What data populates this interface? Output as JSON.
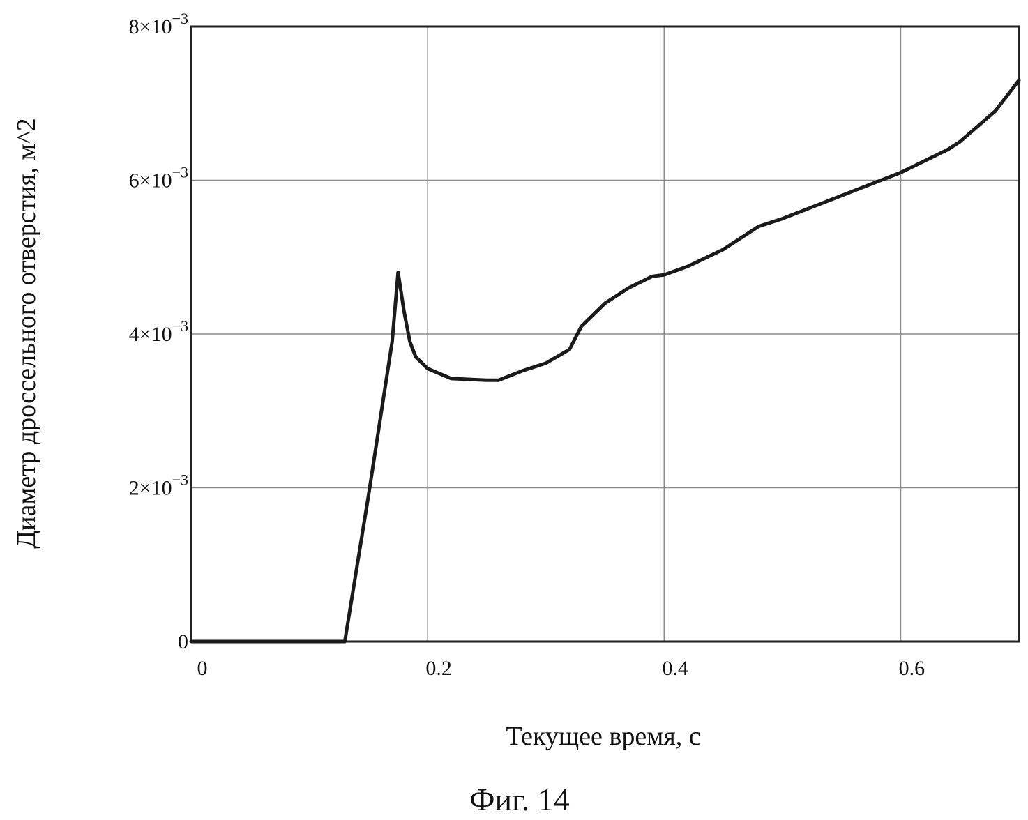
{
  "caption": "Фиг. 14",
  "chart_data": {
    "type": "line",
    "title": "",
    "xlabel": "Текущее время, с",
    "ylabel": "Диаметр дроссельного отверстия, м^2",
    "xlim": [
      0,
      0.7
    ],
    "ylim": [
      0,
      0.008
    ],
    "grid": true,
    "x_ticks": [
      {
        "value": 0,
        "label": "0"
      },
      {
        "value": 0.2,
        "label": "0.2"
      },
      {
        "value": 0.4,
        "label": "0.4"
      },
      {
        "value": 0.6,
        "label": "0.6"
      }
    ],
    "y_ticks": [
      {
        "value": 0,
        "mantissa": "0",
        "exponent": ""
      },
      {
        "value": 0.002,
        "mantissa": "2×10",
        "exponent": "−3"
      },
      {
        "value": 0.004,
        "mantissa": "4×10",
        "exponent": "−3"
      },
      {
        "value": 0.006,
        "mantissa": "6×10",
        "exponent": "−3"
      },
      {
        "value": 0.008,
        "mantissa": "8×10",
        "exponent": "−3"
      }
    ],
    "series": [
      {
        "color": "#1a1a1a",
        "x": [
          0,
          0.05,
          0.1,
          0.13,
          0.15,
          0.16,
          0.17,
          0.175,
          0.18,
          0.185,
          0.19,
          0.2,
          0.22,
          0.25,
          0.26,
          0.28,
          0.3,
          0.32,
          0.33,
          0.35,
          0.37,
          0.39,
          0.4,
          0.42,
          0.45,
          0.48,
          0.5,
          0.55,
          0.6,
          0.64,
          0.65,
          0.68,
          0.7
        ],
        "y": [
          0,
          0,
          0,
          0,
          0.0019,
          0.0029,
          0.0039,
          0.0048,
          0.0043,
          0.0039,
          0.0037,
          0.00355,
          0.00342,
          0.0034,
          0.0034,
          0.00352,
          0.00362,
          0.0038,
          0.0041,
          0.0044,
          0.0046,
          0.00475,
          0.00477,
          0.00488,
          0.0051,
          0.0054,
          0.0055,
          0.0058,
          0.0061,
          0.0064,
          0.0065,
          0.0069,
          0.0073
        ]
      }
    ]
  }
}
